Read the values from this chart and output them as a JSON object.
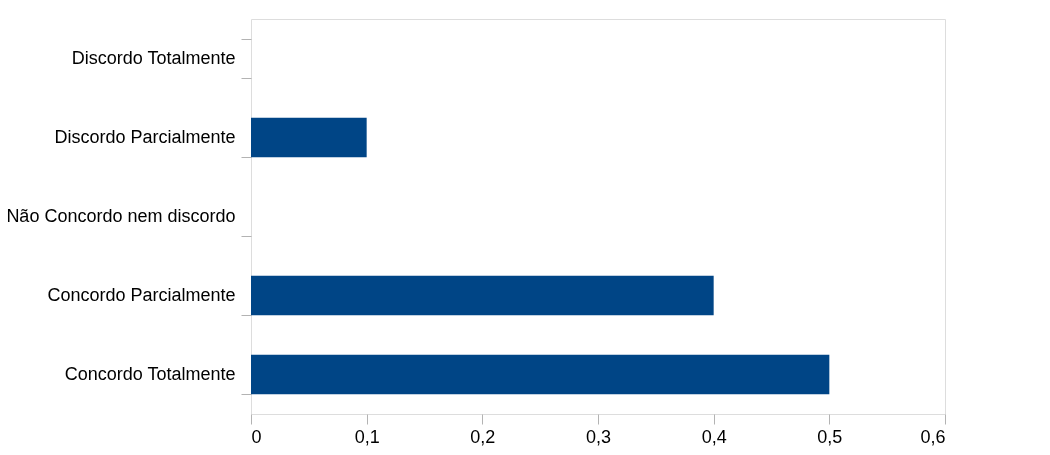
{
  "chart_data": {
    "type": "bar",
    "orientation": "horizontal",
    "categories": [
      "Discordo Totalmente",
      "Discordo Parcialmente",
      "Não Concordo nem discordo",
      "Concordo Parcialmente",
      "Concordo Totalmente"
    ],
    "values": [
      0,
      0.1,
      0,
      0.4,
      0.5
    ],
    "color": "#004586",
    "xlim": [
      0,
      0.6
    ],
    "xticks": [
      0,
      {
        "value": 0.1,
        "label": "0,1"
      },
      {
        "value": 0.2,
        "label": "0,2"
      },
      {
        "value": 0.3,
        "label": "0,3"
      },
      {
        "value": 0.4,
        "label": "0,4"
      },
      {
        "value": 0.5,
        "label": "0,5"
      },
      {
        "value": 0.6,
        "label": "0,6"
      }
    ],
    "grid": false
  }
}
